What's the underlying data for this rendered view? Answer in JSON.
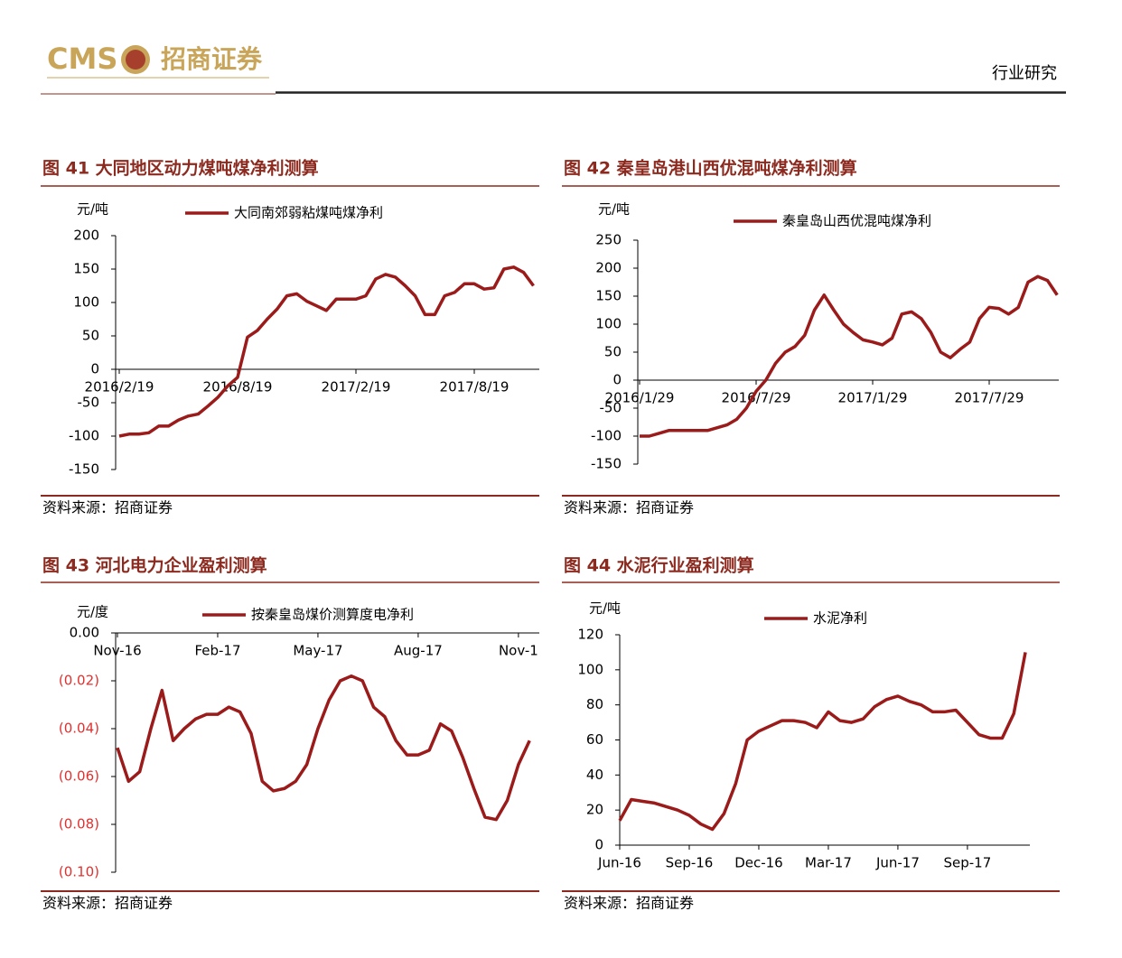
{
  "header": {
    "logo": "CMS",
    "company": "招商证券",
    "section": "行业研究"
  },
  "chart_data": [
    {
      "type": "line",
      "title": "图 41 大同地区动力煤吨煤净利测算",
      "y_label": "元/吨",
      "source": "资料来源：招商证券",
      "categories": [
        "2016/2/19",
        null,
        null,
        null,
        null,
        null,
        null,
        null,
        null,
        null,
        null,
        null,
        "2016/8/19",
        null,
        null,
        null,
        null,
        null,
        null,
        null,
        null,
        null,
        null,
        null,
        "2017/2/19",
        null,
        null,
        null,
        null,
        null,
        null,
        null,
        null,
        null,
        null,
        null,
        "2017/8/19",
        null,
        null,
        null,
        null,
        null,
        null
      ],
      "series": [
        {
          "name": "大同南郊弱粘煤吨煤净利",
          "color": "#9b1b1b",
          "values": [
            -100,
            -97,
            -97,
            -95,
            -85,
            -85,
            -76,
            -70,
            -67,
            -55,
            -42,
            -25,
            -12,
            48,
            58,
            75,
            90,
            110,
            113,
            102,
            95,
            88,
            105,
            105,
            105,
            110,
            135,
            142,
            138,
            125,
            110,
            82,
            82,
            110,
            115,
            128,
            128,
            120,
            122,
            150,
            153,
            145,
            125
          ]
        }
      ],
      "ylim": [
        -150,
        200
      ],
      "yticks": [
        -150,
        -100,
        -50,
        0,
        50,
        100,
        150,
        200
      ],
      "grid": false
    },
    {
      "type": "line",
      "title": "图 42 秦皇岛港山西优混吨煤净利测算",
      "y_label": "元/吨",
      "source": "资料来源：招商证券",
      "categories": [
        "2016/1/29",
        null,
        null,
        null,
        null,
        null,
        null,
        null,
        null,
        null,
        null,
        null,
        "2016/7/29",
        null,
        null,
        null,
        null,
        null,
        null,
        null,
        null,
        null,
        null,
        null,
        "2017/1/29",
        null,
        null,
        null,
        null,
        null,
        null,
        null,
        null,
        null,
        null,
        null,
        "2017/7/29",
        null,
        null,
        null,
        null,
        null,
        null,
        null
      ],
      "series": [
        {
          "name": "秦皇岛山西优混吨煤净利",
          "color": "#9b1b1b",
          "values": [
            -100,
            -100,
            -95,
            -90,
            -90,
            -90,
            -90,
            -90,
            -85,
            -80,
            -70,
            -50,
            -20,
            0,
            30,
            50,
            60,
            80,
            125,
            152,
            125,
            100,
            85,
            72,
            68,
            63,
            75,
            118,
            122,
            110,
            85,
            50,
            40,
            55,
            68,
            110,
            130,
            128,
            118,
            130,
            175,
            185,
            178,
            152
          ]
        }
      ],
      "ylim": [
        -150,
        250
      ],
      "yticks": [
        -150,
        -100,
        -50,
        0,
        50,
        100,
        150,
        200,
        250
      ],
      "grid": false
    },
    {
      "type": "line",
      "title": "图 43 河北电力企业盈利测算",
      "y_label": "元/度",
      "source": "资料来源：招商证券",
      "categories": [
        "Nov-16",
        null,
        null,
        null,
        null,
        null,
        null,
        null,
        null,
        "Feb-17",
        null,
        null,
        null,
        null,
        null,
        null,
        null,
        null,
        "May-17",
        null,
        null,
        null,
        null,
        null,
        null,
        null,
        null,
        "Aug-17",
        null,
        null,
        null,
        null,
        null,
        null,
        null,
        null,
        "Nov-1",
        null
      ],
      "series": [
        {
          "name": "按秦皇岛煤价测算度电净利",
          "color": "#9b1b1b",
          "values": [
            -0.048,
            -0.062,
            -0.058,
            -0.04,
            -0.024,
            -0.045,
            -0.04,
            -0.036,
            -0.034,
            -0.034,
            -0.031,
            -0.033,
            -0.042,
            -0.062,
            -0.066,
            -0.065,
            -0.062,
            -0.055,
            -0.04,
            -0.028,
            -0.02,
            -0.018,
            -0.02,
            -0.031,
            -0.035,
            -0.045,
            -0.051,
            -0.051,
            -0.049,
            -0.038,
            -0.041,
            -0.052,
            -0.065,
            -0.077,
            -0.078,
            -0.07,
            -0.055,
            -0.045
          ]
        }
      ],
      "ylim": [
        -0.1,
        0
      ],
      "yticks": [
        {
          "value": -0.1,
          "label": "(0.10)"
        },
        {
          "value": -0.08,
          "label": "(0.08)"
        },
        {
          "value": -0.06,
          "label": "(0.06)"
        },
        {
          "value": -0.04,
          "label": "(0.04)"
        },
        {
          "value": -0.02,
          "label": "(0.02)"
        },
        {
          "value": 0,
          "label": "0.00"
        }
      ],
      "negative_tick_color": "#e0312f",
      "grid": false
    },
    {
      "type": "line",
      "title": "图 44 水泥行业盈利测算",
      "y_label": "元/吨",
      "source": "资料来源：招商证券",
      "categories": [
        "Jun-16",
        null,
        null,
        null,
        null,
        null,
        "Sep-16",
        null,
        null,
        null,
        null,
        null,
        "Dec-16",
        null,
        null,
        null,
        null,
        null,
        "Mar-17",
        null,
        null,
        null,
        null,
        null,
        "Jun-17",
        null,
        null,
        null,
        null,
        null,
        "Sep-17",
        null,
        null,
        null,
        null,
        null
      ],
      "series": [
        {
          "name": "水泥净利",
          "color": "#9b1b1b",
          "values": [
            14,
            26,
            25,
            24,
            22,
            20,
            17,
            12,
            9,
            18,
            35,
            60,
            65,
            68,
            71,
            71,
            70,
            67,
            76,
            71,
            70,
            72,
            79,
            83,
            85,
            82,
            80,
            76,
            76,
            77,
            70,
            63,
            61,
            61,
            75,
            110
          ]
        }
      ],
      "ylim": [
        0,
        120
      ],
      "yticks": [
        0,
        20,
        40,
        60,
        80,
        100,
        120
      ],
      "grid": false
    }
  ]
}
